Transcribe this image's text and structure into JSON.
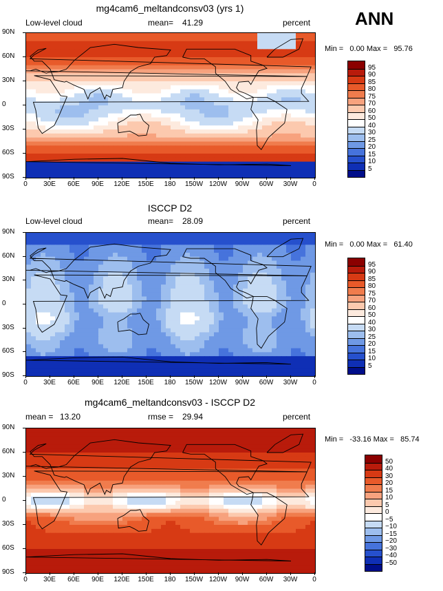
{
  "season": "ANN",
  "chart_data": [
    {
      "type": "heatmap",
      "panel": "model",
      "title": "mg4cam6_meltandconsv03 (yrs 1)",
      "left_label": "Low-level cloud",
      "stat_label": "mean=",
      "stat_value": "41.29",
      "units": "percent",
      "min_label": "Min =",
      "min_value": "0.00",
      "max_label": "Max =",
      "max_value": "95.76",
      "colorbar_levels": [
        "95",
        "90",
        "85",
        "80",
        "75",
        "70",
        "60",
        "50",
        "40",
        "30",
        "25",
        "20",
        "15",
        "10",
        "5"
      ],
      "colorbar_colors": [
        "#8b0000",
        "#b81b0b",
        "#d73a14",
        "#e85a2a",
        "#f07c4d",
        "#f7a27e",
        "#fcc9ae",
        "#fdeade",
        "#ffffff",
        "#c6dbf4",
        "#9dbeee",
        "#6f99e5",
        "#4673dc",
        "#2650cd",
        "#0f2fb5",
        "#000e8a"
      ],
      "lon_ticks": [
        "0",
        "30E",
        "60E",
        "90E",
        "120E",
        "150E",
        "180",
        "150W",
        "120W",
        "90W",
        "60W",
        "30W",
        "0"
      ],
      "lat_ticks": [
        "90N",
        "60N",
        "30N",
        "0",
        "30S",
        "60S",
        "90S"
      ]
    },
    {
      "type": "heatmap",
      "panel": "obs",
      "title": "ISCCP D2",
      "left_label": "Low-level cloud",
      "stat_label": "mean=",
      "stat_value": "28.09",
      "units": "percent",
      "min_label": "Min =",
      "min_value": "0.00",
      "max_label": "Max =",
      "max_value": "61.40",
      "colorbar_levels": [
        "95",
        "90",
        "85",
        "80",
        "75",
        "70",
        "60",
        "50",
        "40",
        "30",
        "25",
        "20",
        "15",
        "10",
        "5"
      ],
      "colorbar_colors": [
        "#8b0000",
        "#b81b0b",
        "#d73a14",
        "#e85a2a",
        "#f07c4d",
        "#f7a27e",
        "#fcc9ae",
        "#fdeade",
        "#ffffff",
        "#c6dbf4",
        "#9dbeee",
        "#6f99e5",
        "#4673dc",
        "#2650cd",
        "#0f2fb5",
        "#000e8a"
      ],
      "lon_ticks": [
        "0",
        "30E",
        "60E",
        "90E",
        "120E",
        "150E",
        "180",
        "150W",
        "120W",
        "90W",
        "60W",
        "30W",
        "0"
      ],
      "lat_ticks": [
        "90N",
        "60N",
        "30N",
        "0",
        "30S",
        "60S",
        "90S"
      ]
    },
    {
      "type": "heatmap",
      "panel": "diff",
      "title": "mg4cam6_meltandconsv03 - ISCCP D2",
      "left_label": "mean =",
      "left_value": "13.20",
      "stat_label": "rmse =",
      "stat_value": "29.94",
      "units": "percent",
      "min_label": "Min =",
      "min_value": "-33.16",
      "max_label": "Max =",
      "max_value": "85.74",
      "colorbar_levels": [
        "50",
        "40",
        "30",
        "20",
        "15",
        "10",
        "5",
        "0",
        "−5",
        "−10",
        "−15",
        "−20",
        "−30",
        "−40",
        "−50"
      ],
      "colorbar_colors": [
        "#8b0000",
        "#b81b0b",
        "#d73a14",
        "#e85a2a",
        "#f07c4d",
        "#f7a27e",
        "#fcc9ae",
        "#fdeade",
        "#ffffff",
        "#c6dbf4",
        "#9dbeee",
        "#6f99e5",
        "#4673dc",
        "#2650cd",
        "#0f2fb5",
        "#000e8a"
      ],
      "lon_ticks": [
        "0",
        "30E",
        "60E",
        "90E",
        "120E",
        "150E",
        "180",
        "150W",
        "120W",
        "90W",
        "60W",
        "30W",
        "0"
      ],
      "lat_ticks": [
        "90N",
        "60N",
        "30N",
        "0",
        "30S",
        "60S",
        "90S"
      ]
    }
  ]
}
